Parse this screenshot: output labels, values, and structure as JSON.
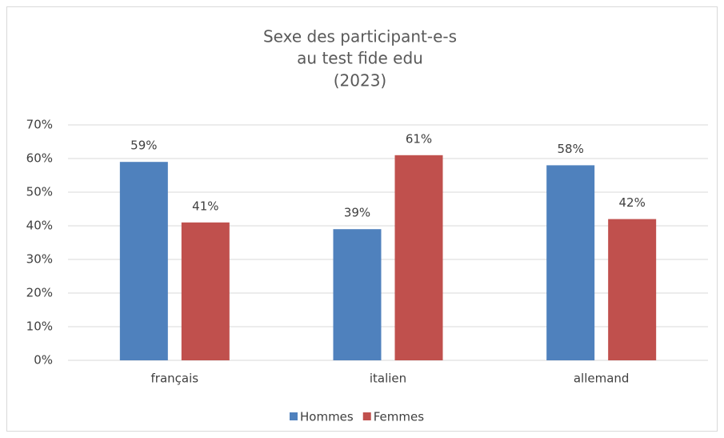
{
  "chart_data": {
    "type": "bar",
    "title": [
      "Sexe des participant-e-s",
      "au test fide edu",
      "(2023)"
    ],
    "categories": [
      "français",
      "italien",
      "allemand"
    ],
    "series": [
      {
        "name": "Hommes",
        "color": "#4f81bd",
        "values": [
          59,
          39,
          58
        ],
        "value_labels": [
          "59%",
          "39%",
          "58%"
        ]
      },
      {
        "name": "Femmes",
        "color": "#c0504d",
        "values": [
          41,
          61,
          42
        ],
        "value_labels": [
          "41%",
          "61%",
          "42%"
        ]
      }
    ],
    "ylim": [
      0,
      70
    ],
    "yticks": [
      {
        "value": 0,
        "label": "0%"
      },
      {
        "value": 10,
        "label": "10%"
      },
      {
        "value": 20,
        "label": "20%"
      },
      {
        "value": 30,
        "label": "30%"
      },
      {
        "value": 40,
        "label": "40%"
      },
      {
        "value": 50,
        "label": "50%"
      },
      {
        "value": 60,
        "label": "60%"
      },
      {
        "value": 70,
        "label": "70%"
      }
    ],
    "grid": true,
    "legend": "bottom"
  }
}
